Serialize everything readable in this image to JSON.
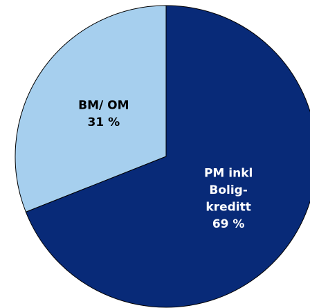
{
  "chart_data": {
    "type": "pie",
    "categories": [
      "PM inkl\nBolig-\nkreditt",
      "BM/ OM"
    ],
    "values": [
      69,
      31
    ],
    "value_labels": [
      "69 %",
      "31 %"
    ],
    "colors": [
      "#082a78",
      "#a6cfee"
    ]
  }
}
